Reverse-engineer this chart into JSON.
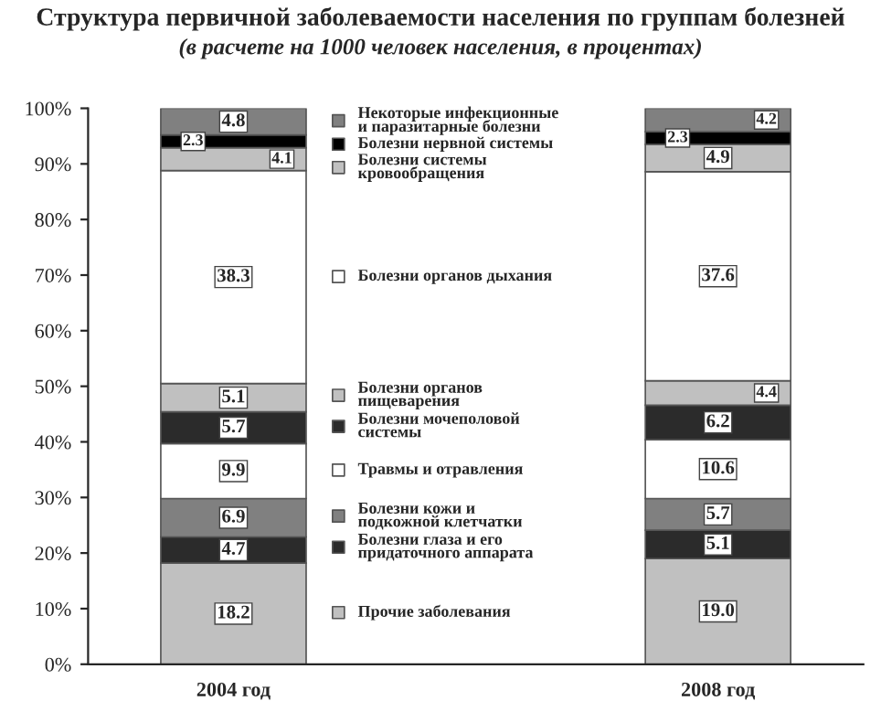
{
  "chart_data": {
    "type": "bar",
    "stacked": true,
    "title": "Структура первичной заболеваемости населения по группам болезней",
    "subtitle": "(в расчете на 1000 человек населения, в процентах)",
    "categories": [
      "2004 год",
      "2008 год"
    ],
    "series": [
      {
        "name": "Прочие заболевания",
        "color": "#c0c0c0",
        "values": [
          18.2,
          19.0
        ],
        "value_labels": [
          "18.2",
          "19.0"
        ]
      },
      {
        "name": "Болезни глаза и его\nпридаточного аппарата",
        "color": "#2b2b2b",
        "values": [
          4.7,
          5.1
        ],
        "value_labels": [
          "4.7",
          "5.1"
        ]
      },
      {
        "name": "Болезни кожи и\nподкожной клетчатки",
        "color": "#808080",
        "values": [
          6.9,
          5.7
        ],
        "value_labels": [
          "6.9",
          "5.7"
        ]
      },
      {
        "name": "Травмы и отравления",
        "color": "#ffffff",
        "values": [
          9.9,
          10.6
        ],
        "value_labels": [
          "9.9",
          "10.6"
        ]
      },
      {
        "name": "Болезни мочеполовой\nсистемы",
        "color": "#2b2b2b",
        "values": [
          5.7,
          6.2
        ],
        "value_labels": [
          "5.7",
          "6.2"
        ]
      },
      {
        "name": "Болезни органов\nпищеварения",
        "color": "#c0c0c0",
        "values": [
          5.1,
          4.4
        ],
        "value_labels": [
          "5.1",
          "4.4"
        ]
      },
      {
        "name": "Болезни органов дыхания",
        "color": "#ffffff",
        "values": [
          38.3,
          37.6
        ],
        "value_labels": [
          "38.3",
          "37.6"
        ]
      },
      {
        "name": "Болезни системы\nкровообращения",
        "color": "#c0c0c0",
        "values": [
          4.1,
          4.9
        ],
        "value_labels": [
          "4.1",
          "4.9"
        ]
      },
      {
        "name": "Болезни нервной системы",
        "color": "#000000",
        "values": [
          2.3,
          2.3
        ],
        "value_labels": [
          "2.3",
          "2.3"
        ]
      },
      {
        "name": "Некоторые инфекционные\nи паразитарные болезни",
        "color": "#808080",
        "values": [
          4.8,
          4.2
        ],
        "value_labels": [
          "4.8",
          "4.2"
        ]
      }
    ],
    "ylim": [
      0,
      100
    ],
    "yticks": [
      {
        "value": 0,
        "label": "0%"
      },
      {
        "value": 10,
        "label": "10%"
      },
      {
        "value": 20,
        "label": "20%"
      },
      {
        "value": 30,
        "label": "30%"
      },
      {
        "value": 40,
        "label": "40%"
      },
      {
        "value": 50,
        "label": "50%"
      },
      {
        "value": 60,
        "label": "60%"
      },
      {
        "value": 70,
        "label": "70%"
      },
      {
        "value": 80,
        "label": "80%"
      },
      {
        "value": 90,
        "label": "90%"
      },
      {
        "value": 100,
        "label": "100%"
      }
    ],
    "grid": false,
    "legend": "center"
  }
}
